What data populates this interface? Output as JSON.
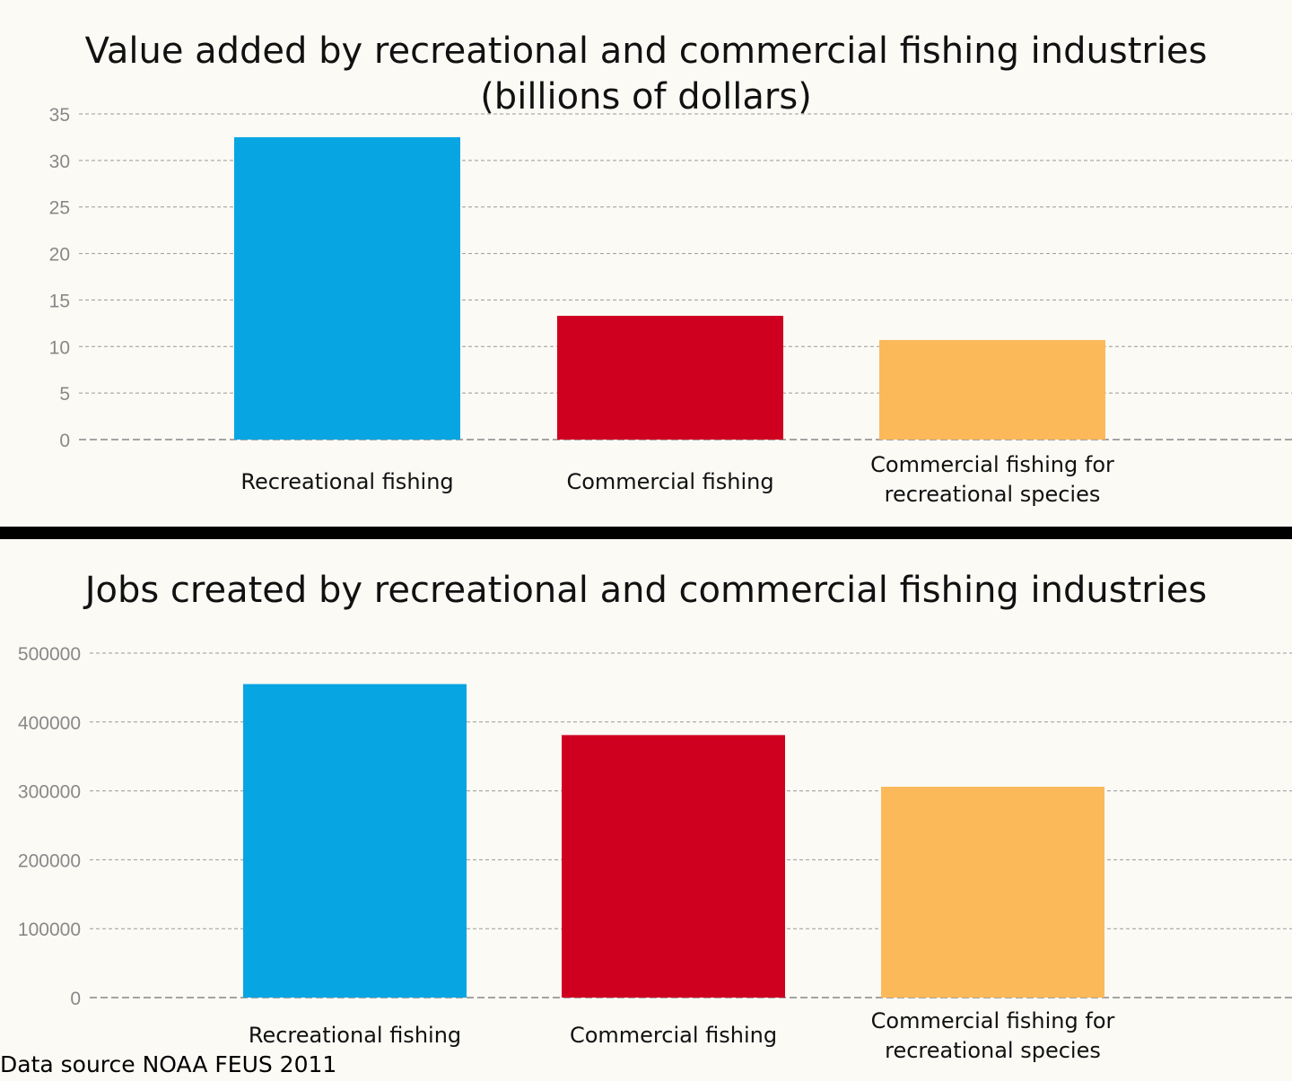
{
  "colors": {
    "recreational": "#08a5e3",
    "commercial": "#cf001f",
    "commercial_rec": "#fcb95a",
    "background": "#fbfaf5"
  },
  "chart_data": [
    {
      "type": "bar",
      "title": "Value added by recreational and commercial fishing industries",
      "subtitle": "(billions of dollars)",
      "categories": [
        "Recreational fishing",
        "Commercial fishing",
        "Commercial fishing for|recreational species"
      ],
      "values": [
        32.5,
        13.3,
        10.7
      ],
      "ylim": [
        0,
        35
      ],
      "yticks": [
        0,
        5,
        10,
        15,
        20,
        25,
        30,
        35
      ],
      "grid": true
    },
    {
      "type": "bar",
      "title": "Jobs created by recreational and commercial fishing industries",
      "categories": [
        "Recreational fishing",
        "Commercial fishing",
        "Commercial fishing for|recreational species"
      ],
      "values": [
        455000,
        381000,
        306000
      ],
      "ylim": [
        0,
        500000
      ],
      "yticks": [
        0,
        100000,
        200000,
        300000,
        400000,
        500000
      ],
      "grid": true
    }
  ],
  "footer": {
    "source": "Data source NOAA FEUS 2011"
  }
}
